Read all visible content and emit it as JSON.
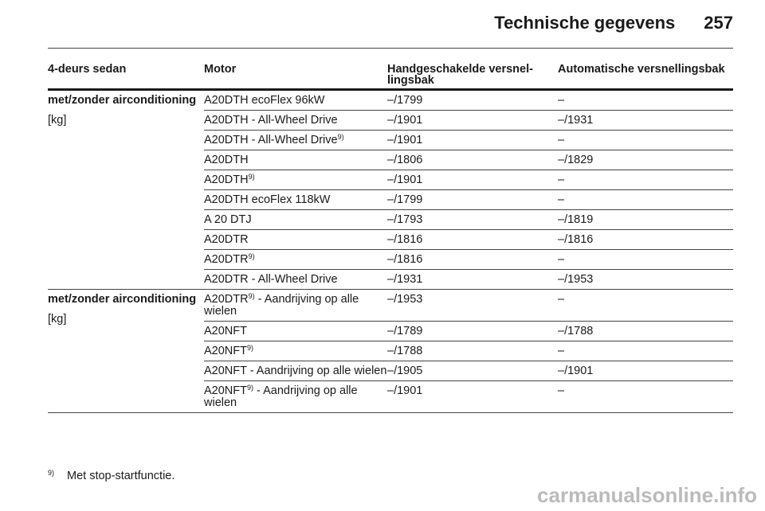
{
  "header": {
    "title": "Technische gegevens",
    "page_number": "257"
  },
  "table": {
    "columns": [
      "4-deurs sedan",
      "Motor",
      "Handgeschakelde versnel-lingsbak",
      "Automatische versnellingsbak"
    ],
    "groups": [
      {
        "label": "met/zonder airconditioning",
        "unit": "[kg]",
        "rows": [
          {
            "motor": "A20DTH ecoFlex 96kW",
            "sup": "",
            "manual": "–/1799",
            "auto": "–"
          },
          {
            "motor": "A20DTH - All-Wheel Drive",
            "sup": "",
            "manual": "–/1901",
            "auto": "–/1931"
          },
          {
            "motor": "A20DTH - All-Wheel Drive",
            "sup": "9)",
            "manual": "–/1901",
            "auto": "–"
          },
          {
            "motor": "A20DTH",
            "sup": "",
            "manual": "–/1806",
            "auto": "–/1829"
          },
          {
            "motor": "A20DTH",
            "sup": "9)",
            "manual": "–/1901",
            "auto": "–"
          },
          {
            "motor": "A20DTH ecoFlex 118kW",
            "sup": "",
            "manual": "–/1799",
            "auto": "–"
          },
          {
            "motor": "A 20 DTJ",
            "sup": "",
            "manual": "–/1793",
            "auto": "–/1819"
          },
          {
            "motor": "A20DTR",
            "sup": "",
            "manual": "–/1816",
            "auto": "–/1816"
          },
          {
            "motor": "A20DTR",
            "sup": "9)",
            "manual": "–/1816",
            "auto": "–"
          },
          {
            "motor": "A20DTR - All-Wheel Drive",
            "sup": "",
            "manual": "–/1931",
            "auto": "–/1953"
          }
        ]
      },
      {
        "label": "met/zonder airconditioning",
        "unit": "[kg]",
        "rows": [
          {
            "motor": "A20DTR",
            "sup": "9)",
            "suffix": " - Aandrijving op alle wielen",
            "manual": "–/1953",
            "auto": "–"
          },
          {
            "motor": "A20NFT",
            "sup": "",
            "manual": "–/1789",
            "auto": "–/1788"
          },
          {
            "motor": "A20NFT",
            "sup": "9)",
            "manual": "–/1788",
            "auto": "–"
          },
          {
            "motor": "A20NFT - Aandrijving op alle wielen",
            "sup": "",
            "manual": "–/1905",
            "auto": "–/1901"
          },
          {
            "motor": "A20NFT",
            "sup": "9)",
            "suffix": " - Aandrijving op alle wielen",
            "manual": "–/1901",
            "auto": "–"
          }
        ]
      }
    ]
  },
  "footnote": {
    "marker": "9)",
    "text": "Met stop-startfunctie."
  },
  "watermark": "carmanualsonline.info"
}
